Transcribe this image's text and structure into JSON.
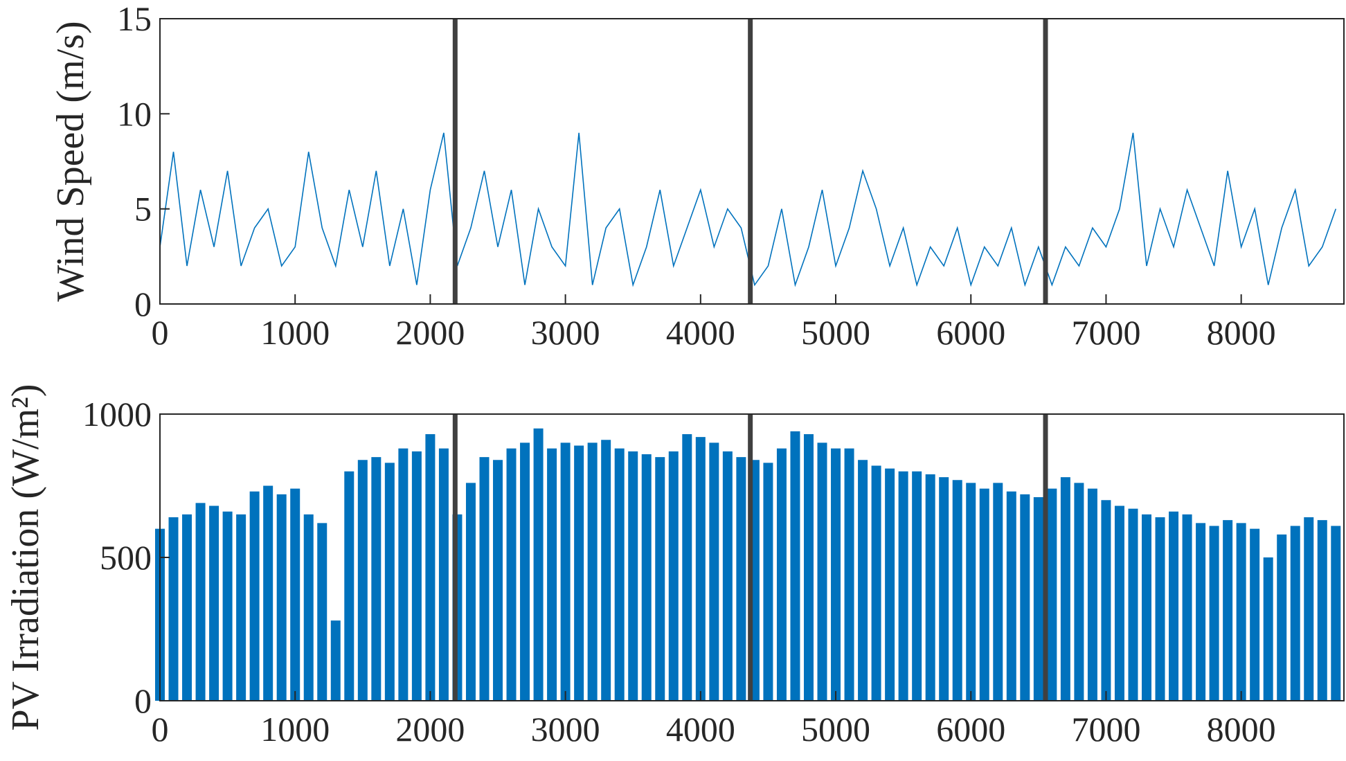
{
  "chart_data": [
    {
      "type": "line",
      "ylabel": "Wind Speed (m/s)",
      "color": "#0072bd",
      "x": [
        0,
        100,
        200,
        300,
        400,
        500,
        600,
        700,
        800,
        900,
        1000,
        1100,
        1200,
        1300,
        1400,
        1500,
        1600,
        1700,
        1800,
        1900,
        2000,
        2100,
        2200,
        2300,
        2400,
        2500,
        2600,
        2700,
        2800,
        2900,
        3000,
        3100,
        3200,
        3300,
        3400,
        3500,
        3600,
        3700,
        3800,
        3900,
        4000,
        4100,
        4200,
        4300,
        4400,
        4500,
        4600,
        4700,
        4800,
        4900,
        5000,
        5100,
        5200,
        5300,
        5400,
        5500,
        5600,
        5700,
        5800,
        5900,
        6000,
        6100,
        6200,
        6300,
        6400,
        6500,
        6600,
        6700,
        6800,
        6900,
        7000,
        7100,
        7200,
        7300,
        7400,
        7500,
        7600,
        7700,
        7800,
        7900,
        8000,
        8100,
        8200,
        8300,
        8400,
        8500,
        8600,
        8700
      ],
      "values": [
        3,
        8,
        2,
        6,
        3,
        7,
        2,
        4,
        5,
        2,
        3,
        8,
        4,
        2,
        6,
        3,
        7,
        2,
        5,
        1,
        6,
        9,
        2,
        4,
        7,
        3,
        6,
        1,
        5,
        3,
        2,
        9,
        1,
        4,
        5,
        1,
        3,
        6,
        2,
        4,
        6,
        3,
        5,
        4,
        1,
        2,
        5,
        1,
        3,
        6,
        2,
        4,
        7,
        5,
        2,
        4,
        1,
        3,
        2,
        4,
        1,
        3,
        2,
        4,
        1,
        3,
        1,
        3,
        2,
        4,
        3,
        5,
        9,
        2,
        5,
        3,
        6,
        4,
        2,
        7,
        3,
        5,
        1,
        4,
        6,
        2,
        3,
        5
      ],
      "xlim": [
        0,
        8760
      ],
      "xticks": [
        0,
        1000,
        2000,
        3000,
        4000,
        5000,
        6000,
        7000,
        8000
      ],
      "ylim": [
        0,
        15
      ],
      "yticks": [
        0,
        5,
        10,
        15
      ],
      "vlines": [
        2184,
        4368,
        6552
      ],
      "vline_color": "#404040"
    },
    {
      "type": "stem",
      "ylabel": "PV Irradiation (W/m²)",
      "color": "#0072bd",
      "x": [
        0,
        100,
        200,
        300,
        400,
        500,
        600,
        700,
        800,
        900,
        1000,
        1100,
        1200,
        1300,
        1400,
        1500,
        1600,
        1700,
        1800,
        1900,
        2000,
        2100,
        2200,
        2300,
        2400,
        2500,
        2600,
        2700,
        2800,
        2900,
        3000,
        3100,
        3200,
        3300,
        3400,
        3500,
        3600,
        3700,
        3800,
        3900,
        4000,
        4100,
        4200,
        4300,
        4400,
        4500,
        4600,
        4700,
        4800,
        4900,
        5000,
        5100,
        5200,
        5300,
        5400,
        5500,
        5600,
        5700,
        5800,
        5900,
        6000,
        6100,
        6200,
        6300,
        6400,
        6500,
        6600,
        6700,
        6800,
        6900,
        7000,
        7100,
        7200,
        7300,
        7400,
        7500,
        7600,
        7700,
        7800,
        7900,
        8000,
        8100,
        8200,
        8300,
        8400,
        8500,
        8600,
        8700
      ],
      "values": [
        600,
        640,
        650,
        690,
        680,
        660,
        650,
        730,
        750,
        720,
        740,
        650,
        620,
        280,
        800,
        840,
        850,
        830,
        880,
        870,
        930,
        880,
        650,
        760,
        850,
        840,
        880,
        900,
        950,
        880,
        900,
        890,
        900,
        910,
        880,
        870,
        860,
        850,
        870,
        930,
        920,
        900,
        870,
        850,
        840,
        830,
        880,
        940,
        930,
        900,
        880,
        880,
        840,
        820,
        810,
        800,
        800,
        790,
        780,
        770,
        760,
        740,
        760,
        730,
        720,
        710,
        740,
        780,
        760,
        740,
        700,
        680,
        670,
        650,
        640,
        660,
        650,
        620,
        610,
        630,
        620,
        600,
        500,
        580,
        610,
        640,
        630,
        610
      ],
      "xlim": [
        0,
        8760
      ],
      "xticks": [
        0,
        1000,
        2000,
        3000,
        4000,
        5000,
        6000,
        7000,
        8000
      ],
      "ylim": [
        0,
        1000
      ],
      "yticks": [
        0,
        500,
        1000
      ],
      "vlines": [
        2184,
        4368,
        6552
      ],
      "vline_color": "#404040"
    }
  ]
}
